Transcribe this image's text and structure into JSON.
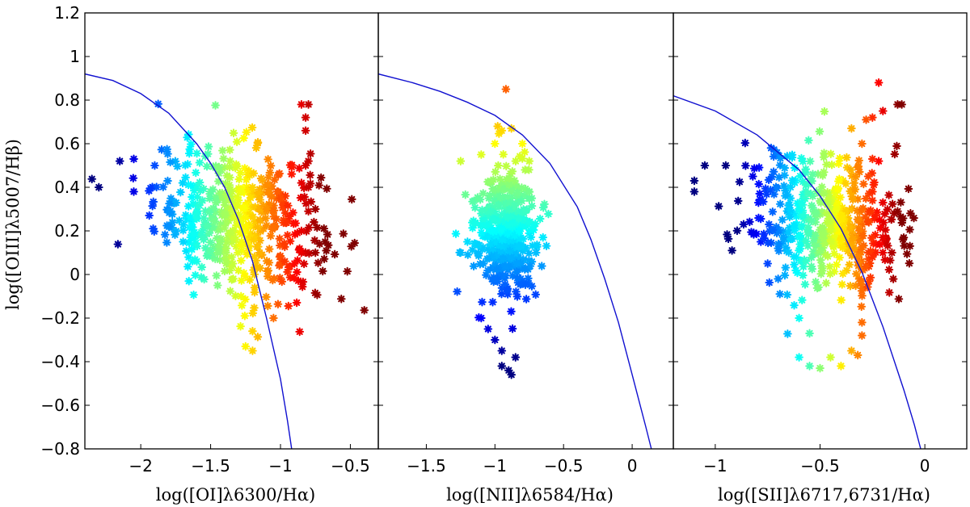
{
  "figure": {
    "ylabel": "log([OIII]λ5007/Hβ)"
  },
  "chart_data": [
    {
      "type": "scatter",
      "panel": "left",
      "xlabel": "log([OI]λ6300/Hα)",
      "ylabel": "log([OIII]λ5007/Hβ)",
      "xlim": [
        -2.4,
        -0.3
      ],
      "ylim": [
        -0.8,
        1.2
      ],
      "xticks": [
        -2,
        -1.5,
        -1,
        -0.5
      ],
      "xtick_labels": [
        "−2",
        "−1.5",
        "−1",
        "−0.5"
      ],
      "yticks": [
        -0.8,
        -0.6,
        -0.4,
        -0.2,
        0,
        0.2,
        0.4,
        0.6,
        0.8,
        1,
        1.2
      ],
      "ytick_labels": [
        "−0.8",
        "−0.6",
        "−0.4",
        "−0.2",
        "0",
        "0.2",
        "0.4",
        "0.6",
        "0.8",
        "1",
        "1.2"
      ],
      "marker": "*",
      "color_scale": "jet",
      "color_range": [
        -2.2,
        -0.7
      ],
      "point_count": 500,
      "cluster": {
        "x_mean": -1.3,
        "x_sd": 0.3,
        "y_mean": 0.25,
        "y_sd": 0.17,
        "slope": -0.12
      },
      "points": [
        {
          "x": -2.3,
          "y": 0.4
        },
        {
          "x": -2.15,
          "y": 0.52
        },
        {
          "x": -2.05,
          "y": 0.53
        },
        {
          "x": -2.05,
          "y": 0.38
        },
        {
          "x": -1.9,
          "y": 0.5
        },
        {
          "x": -1.8,
          "y": 0.22
        },
        {
          "x": -1.7,
          "y": 0.42
        },
        {
          "x": -1.55,
          "y": 0.16
        },
        {
          "x": -1.5,
          "y": 0.38
        },
        {
          "x": -1.45,
          "y": 0.1
        },
        {
          "x": -1.4,
          "y": 0.28
        },
        {
          "x": -1.35,
          "y": 0.08
        },
        {
          "x": -1.3,
          "y": 0.34
        },
        {
          "x": -1.25,
          "y": 0.26
        },
        {
          "x": -1.2,
          "y": 0.4
        },
        {
          "x": -1.15,
          "y": 0.1
        },
        {
          "x": -1.1,
          "y": 0.3
        },
        {
          "x": -1.05,
          "y": 0.22
        },
        {
          "x": -1.0,
          "y": 0.35
        },
        {
          "x": -0.95,
          "y": 0.18
        },
        {
          "x": -0.9,
          "y": 0.05
        },
        {
          "x": -1.2,
          "y": -0.26
        },
        {
          "x": -1.25,
          "y": -0.33
        },
        {
          "x": -1.2,
          "y": -0.35
        },
        {
          "x": -1.45,
          "y": -0.05
        },
        {
          "x": -1.05,
          "y": -0.2
        },
        {
          "x": -0.85,
          "y": 0.78
        },
        {
          "x": -0.8,
          "y": 0.78
        },
        {
          "x": -0.82,
          "y": 0.72
        },
        {
          "x": -0.82,
          "y": 0.66
        },
        {
          "x": -0.82,
          "y": 0.5
        },
        {
          "x": -0.8,
          "y": 0.52
        },
        {
          "x": -0.85,
          "y": 0.42
        },
        {
          "x": -0.8,
          "y": 0.4
        },
        {
          "x": -0.8,
          "y": 0.29
        },
        {
          "x": -0.75,
          "y": 0.3
        },
        {
          "x": -0.72,
          "y": 0.14
        },
        {
          "x": -0.68,
          "y": 0.15
        },
        {
          "x": -0.75,
          "y": 0.1
        },
        {
          "x": -0.85,
          "y": 0.2
        }
      ],
      "curve": [
        [
          -2.4,
          0.92
        ],
        [
          -2.2,
          0.89
        ],
        [
          -2.0,
          0.83
        ],
        [
          -1.8,
          0.74
        ],
        [
          -1.6,
          0.6
        ],
        [
          -1.5,
          0.51
        ],
        [
          -1.4,
          0.4
        ],
        [
          -1.3,
          0.25
        ],
        [
          -1.2,
          0.06
        ],
        [
          -1.1,
          -0.2
        ],
        [
          -1.0,
          -0.48
        ],
        [
          -0.95,
          -0.67
        ],
        [
          -0.92,
          -0.8
        ]
      ]
    },
    {
      "type": "scatter",
      "panel": "middle",
      "xlabel": "log([NII]λ6584/Hα)",
      "xlim": [
        -1.85,
        0.3
      ],
      "ylim": [
        -0.8,
        1.2
      ],
      "xticks": [
        -1.5,
        -1,
        -0.5,
        0
      ],
      "xtick_labels": [
        "−1.5",
        "−1",
        "−0.5",
        "0"
      ],
      "marker": "*",
      "color_scale": "jet",
      "color_range": [
        -0.4,
        1.2
      ],
      "point_count": 450,
      "cluster": {
        "x_mean": -0.92,
        "x_sd": 0.11,
        "y_mean": 0.2,
        "y_sd": 0.14,
        "slope": -0.12
      },
      "points": [
        {
          "x": -0.92,
          "y": 0.85
        },
        {
          "x": -0.98,
          "y": 0.68
        },
        {
          "x": -0.95,
          "y": 0.66
        },
        {
          "x": -0.88,
          "y": 0.67
        },
        {
          "x": -0.8,
          "y": 0.6
        },
        {
          "x": -1.0,
          "y": 0.6
        },
        {
          "x": -1.1,
          "y": 0.55
        },
        {
          "x": -1.25,
          "y": 0.52
        },
        {
          "x": -0.75,
          "y": 0.52
        },
        {
          "x": -0.78,
          "y": 0.48
        },
        {
          "x": -0.75,
          "y": 0.38
        },
        {
          "x": -0.72,
          "y": 0.22
        },
        {
          "x": -0.65,
          "y": 0.17
        },
        {
          "x": -0.7,
          "y": 0.1
        },
        {
          "x": -1.25,
          "y": 0.1
        },
        {
          "x": -1.2,
          "y": 0.15
        },
        {
          "x": -1.1,
          "y": -0.2
        },
        {
          "x": -1.05,
          "y": -0.25
        },
        {
          "x": -1.0,
          "y": -0.3
        },
        {
          "x": -0.95,
          "y": -0.35
        },
        {
          "x": -0.95,
          "y": -0.42
        },
        {
          "x": -0.9,
          "y": -0.44
        },
        {
          "x": -0.88,
          "y": -0.46
        },
        {
          "x": -0.85,
          "y": -0.38
        }
      ],
      "curve": [
        [
          -1.85,
          0.92
        ],
        [
          -1.6,
          0.88
        ],
        [
          -1.4,
          0.84
        ],
        [
          -1.2,
          0.79
        ],
        [
          -1.0,
          0.73
        ],
        [
          -0.8,
          0.64
        ],
        [
          -0.6,
          0.51
        ],
        [
          -0.4,
          0.31
        ],
        [
          -0.3,
          0.16
        ],
        [
          -0.2,
          -0.02
        ],
        [
          -0.1,
          -0.22
        ],
        [
          0.0,
          -0.46
        ],
        [
          0.1,
          -0.7
        ],
        [
          0.14,
          -0.8
        ]
      ]
    },
    {
      "type": "scatter",
      "panel": "right",
      "xlabel": "log([SII]λ6717,6731/Hα)",
      "xlim": [
        -1.2,
        0.2
      ],
      "ylim": [
        -0.8,
        1.2
      ],
      "xticks": [
        -1,
        -0.5,
        0
      ],
      "xtick_labels": [
        "−1",
        "−0.5",
        "0"
      ],
      "marker": "*",
      "color_scale": "jet",
      "color_range": [
        -0.9,
        -0.12
      ],
      "point_count": 500,
      "cluster": {
        "x_mean": -0.47,
        "x_sd": 0.18,
        "y_mean": 0.23,
        "y_sd": 0.16,
        "slope": -0.15
      },
      "points": [
        {
          "x": -1.1,
          "y": 0.43
        },
        {
          "x": -1.1,
          "y": 0.38
        },
        {
          "x": -1.05,
          "y": 0.5
        },
        {
          "x": -0.95,
          "y": 0.5
        },
        {
          "x": -0.92,
          "y": 0.11
        },
        {
          "x": -0.7,
          "y": 0.12
        },
        {
          "x": -0.75,
          "y": 0.05
        },
        {
          "x": -0.7,
          "y": -0.02
        },
        {
          "x": -0.6,
          "y": -0.2
        },
        {
          "x": -0.55,
          "y": -0.27
        },
        {
          "x": -0.6,
          "y": -0.38
        },
        {
          "x": -0.55,
          "y": -0.42
        },
        {
          "x": -0.5,
          "y": -0.43
        },
        {
          "x": -0.45,
          "y": -0.38
        },
        {
          "x": -0.4,
          "y": -0.42
        },
        {
          "x": -0.35,
          "y": -0.35
        },
        {
          "x": -0.32,
          "y": -0.37
        },
        {
          "x": -0.3,
          "y": -0.28
        },
        {
          "x": -0.3,
          "y": -0.22
        },
        {
          "x": -0.22,
          "y": 0.88
        },
        {
          "x": -0.13,
          "y": 0.78
        },
        {
          "x": -0.11,
          "y": 0.78
        },
        {
          "x": -0.2,
          "y": 0.75
        },
        {
          "x": -0.25,
          "y": 0.72
        },
        {
          "x": -0.28,
          "y": 0.71
        },
        {
          "x": -0.35,
          "y": 0.67
        },
        {
          "x": -0.3,
          "y": 0.6
        },
        {
          "x": -0.25,
          "y": 0.53
        },
        {
          "x": -0.22,
          "y": 0.52
        },
        {
          "x": -0.27,
          "y": 0.45
        },
        {
          "x": -0.25,
          "y": 0.38
        },
        {
          "x": -0.2,
          "y": 0.33
        },
        {
          "x": -0.13,
          "y": 0.29
        },
        {
          "x": -0.2,
          "y": 0.17
        },
        {
          "x": -0.2,
          "y": 0.1
        },
        {
          "x": -0.25,
          "y": 0.08
        }
      ],
      "curve": [
        [
          -1.2,
          0.82
        ],
        [
          -1.0,
          0.75
        ],
        [
          -0.8,
          0.64
        ],
        [
          -0.6,
          0.48
        ],
        [
          -0.5,
          0.36
        ],
        [
          -0.4,
          0.21
        ],
        [
          -0.3,
          0.01
        ],
        [
          -0.2,
          -0.24
        ],
        [
          -0.1,
          -0.53
        ],
        [
          -0.05,
          -0.69
        ],
        [
          -0.02,
          -0.8
        ]
      ]
    }
  ],
  "colors": {
    "axis": "#000000",
    "curve": "#1010d0",
    "background": "#ffffff"
  }
}
